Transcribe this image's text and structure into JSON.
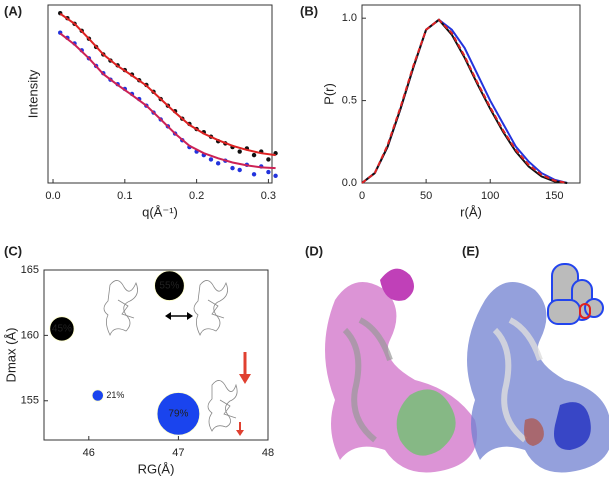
{
  "chart_data": [
    {
      "type": "line",
      "panel_label": "(A)",
      "xlabel": "q(Å⁻¹)",
      "ylabel": "Intensity",
      "yscale": "log",
      "xlim": [
        -0.007,
        0.305
      ],
      "xticks": [
        {
          "value": 0,
          "label": "0.0"
        },
        0.1,
        0.2,
        0.3
      ],
      "ylim": [
        0.003,
        12
      ],
      "series": [
        {
          "style": "dots",
          "color": "#111111",
          "x": [
            0.01,
            0.02,
            0.03,
            0.04,
            0.05,
            0.06,
            0.07,
            0.08,
            0.09,
            0.1,
            0.11,
            0.12,
            0.13,
            0.14,
            0.15,
            0.16,
            0.17,
            0.18,
            0.19,
            0.2,
            0.21,
            0.22,
            0.23,
            0.24,
            0.25,
            0.26,
            0.27,
            0.28,
            0.29,
            0.3,
            0.31
          ],
          "values": [
            8.2,
            6.5,
            5.0,
            3.6,
            2.5,
            1.7,
            1.2,
            0.9,
            0.72,
            0.58,
            0.47,
            0.36,
            0.29,
            0.21,
            0.15,
            0.11,
            0.085,
            0.06,
            0.047,
            0.037,
            0.032,
            0.026,
            0.021,
            0.019,
            0.016,
            0.013,
            0.015,
            0.011,
            0.013,
            0.009,
            0.012
          ]
        },
        {
          "style": "dots",
          "color": "#2233dd",
          "x": [
            0.01,
            0.02,
            0.03,
            0.04,
            0.05,
            0.06,
            0.07,
            0.08,
            0.09,
            0.1,
            0.11,
            0.12,
            0.13,
            0.14,
            0.15,
            0.16,
            0.17,
            0.18,
            0.19,
            0.2,
            0.21,
            0.22,
            0.23,
            0.24,
            0.25,
            0.26,
            0.27,
            0.28,
            0.29,
            0.3,
            0.31
          ],
          "values": [
            3.3,
            2.6,
            2.0,
            1.45,
            1.0,
            0.7,
            0.5,
            0.37,
            0.3,
            0.24,
            0.19,
            0.15,
            0.11,
            0.08,
            0.058,
            0.042,
            0.03,
            0.022,
            0.016,
            0.013,
            0.011,
            0.009,
            0.0075,
            0.0085,
            0.006,
            0.0055,
            0.007,
            0.0045,
            0.0065,
            0.005,
            0.0042
          ]
        },
        {
          "style": "line",
          "color": "#dd2222",
          "x": [
            0.01,
            0.03,
            0.05,
            0.07,
            0.09,
            0.11,
            0.13,
            0.15,
            0.17,
            0.19,
            0.21,
            0.23,
            0.25,
            0.27,
            0.29,
            0.31
          ],
          "values": [
            8,
            5,
            2.5,
            1.2,
            0.7,
            0.45,
            0.28,
            0.15,
            0.08,
            0.045,
            0.03,
            0.022,
            0.017,
            0.014,
            0.012,
            0.011
          ]
        },
        {
          "style": "line",
          "color": "#cc2255",
          "x": [
            0.01,
            0.03,
            0.05,
            0.07,
            0.09,
            0.11,
            0.13,
            0.15,
            0.17,
            0.19,
            0.21,
            0.23,
            0.25,
            0.27,
            0.29,
            0.31
          ],
          "values": [
            3.2,
            1.9,
            1.0,
            0.48,
            0.29,
            0.18,
            0.11,
            0.058,
            0.03,
            0.017,
            0.012,
            0.0095,
            0.0078,
            0.0068,
            0.0062,
            0.006
          ]
        }
      ]
    },
    {
      "type": "line",
      "panel_label": "(B)",
      "xlabel": "r(Å)",
      "ylabel": "P(r)",
      "xlim": [
        0,
        170
      ],
      "xticks": [
        0,
        50,
        100,
        150
      ],
      "ylim": [
        0,
        1.08
      ],
      "yticks": [
        {
          "value": 0,
          "label": "0.0"
        },
        0.5,
        {
          "value": 1,
          "label": "1.0"
        }
      ],
      "series": [
        {
          "style": "line",
          "color": "#2233dd",
          "x": [
            0,
            10,
            20,
            30,
            40,
            50,
            60,
            70,
            80,
            90,
            100,
            110,
            120,
            130,
            140,
            150,
            160
          ],
          "values": [
            0,
            0.06,
            0.22,
            0.45,
            0.7,
            0.93,
            0.99,
            0.93,
            0.82,
            0.66,
            0.5,
            0.36,
            0.22,
            0.13,
            0.06,
            0.02,
            0
          ]
        },
        {
          "style": "line",
          "color": "#111111",
          "x": [
            0,
            10,
            20,
            30,
            40,
            50,
            60,
            70,
            80,
            90,
            100,
            110,
            120,
            130,
            140,
            150,
            160
          ],
          "values": [
            0,
            0.06,
            0.22,
            0.45,
            0.7,
            0.93,
            0.99,
            0.9,
            0.76,
            0.6,
            0.45,
            0.31,
            0.19,
            0.1,
            0.04,
            0.01,
            0
          ]
        },
        {
          "style": "dashed",
          "color": "#dd2222",
          "x": [
            0,
            10,
            20,
            30,
            40,
            50,
            60,
            70,
            80,
            90,
            100,
            110,
            120,
            130,
            140,
            150,
            160
          ],
          "values": [
            0,
            0.06,
            0.23,
            0.46,
            0.71,
            0.93,
            0.99,
            0.91,
            0.77,
            0.61,
            0.46,
            0.32,
            0.2,
            0.11,
            0.05,
            0.015,
            0
          ]
        }
      ]
    },
    {
      "type": "bubble",
      "panel_label": "(C)",
      "xlabel": "RG(Å)",
      "ylabel": "Dmax (Å)",
      "xlim": [
        45.5,
        48
      ],
      "xticks": [
        46,
        47,
        48
      ],
      "ylim": [
        152,
        165
      ],
      "yticks": [
        155,
        160,
        165
      ],
      "series": [
        {
          "color": "#000000",
          "x": [
            45.7,
            46.9
          ],
          "values": [
            160.5,
            163.8
          ],
          "sizes": [
            45,
            55
          ],
          "value_labels": [
            "45%",
            "55%"
          ]
        },
        {
          "color": "#1a44ee",
          "x": [
            46.1,
            47.0
          ],
          "values": [
            155.4,
            154.0
          ],
          "sizes": [
            21,
            79
          ],
          "value_labels": [
            "21%",
            "79%"
          ]
        }
      ]
    }
  ],
  "structure_panels": [
    {
      "label": "(D)"
    },
    {
      "label": "(E)"
    }
  ]
}
